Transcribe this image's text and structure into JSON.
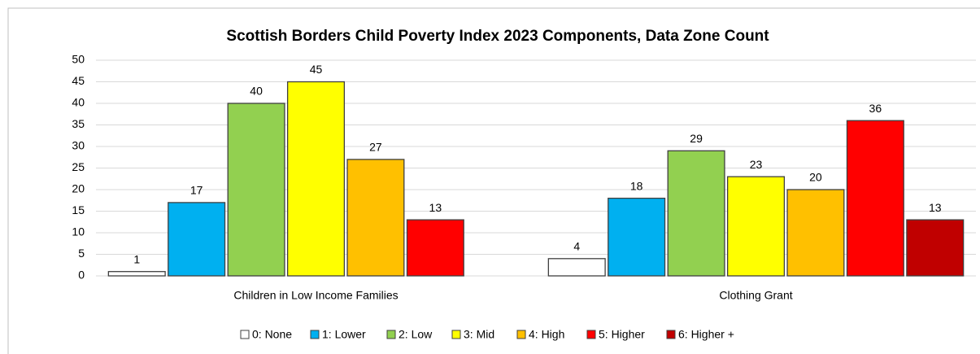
{
  "chart_data": {
    "type": "bar",
    "title": "Scottish Borders Child Poverty Index 2023 Components, Data Zone Count",
    "categories": [
      "Children in Low  Income Families",
      "Clothing Grant"
    ],
    "series": [
      {
        "name": "0: None",
        "color": "#ffffff",
        "values": [
          1,
          4
        ]
      },
      {
        "name": "1: Lower",
        "color": "#00b0f0",
        "values": [
          17,
          18
        ]
      },
      {
        "name": "2: Low",
        "color": "#92d050",
        "values": [
          40,
          29
        ]
      },
      {
        "name": "3: Mid",
        "color": "#ffff00",
        "values": [
          45,
          23
        ]
      },
      {
        "name": "4: High",
        "color": "#ffc000",
        "values": [
          27,
          20
        ]
      },
      {
        "name": "5: Higher",
        "color": "#ff0000",
        "values": [
          13,
          36
        ]
      },
      {
        "name": "6: Higher +",
        "color": "#c00000",
        "values": [
          null,
          13
        ]
      }
    ],
    "ylim": [
      0,
      50
    ],
    "yticks": [
      0,
      5,
      10,
      15,
      20,
      25,
      30,
      35,
      40,
      45,
      50
    ],
    "grid": true,
    "legend": "bottom"
  }
}
